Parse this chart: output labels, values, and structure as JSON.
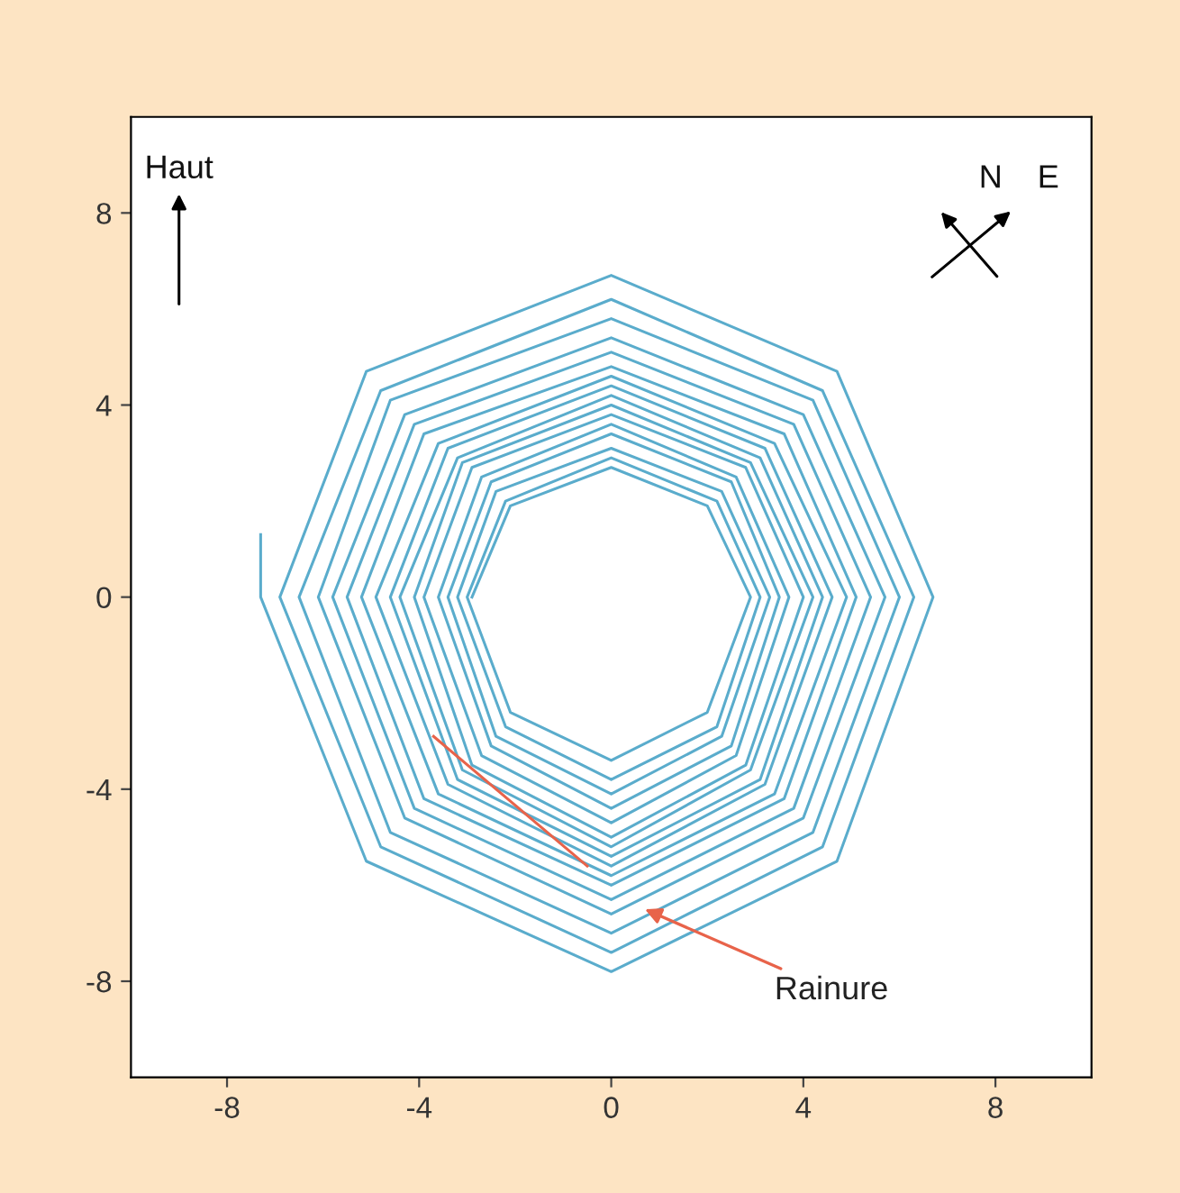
{
  "chart_data": {
    "type": "line",
    "xlim": [
      -10,
      10
    ],
    "ylim": [
      -10,
      10
    ],
    "xticks": [
      -8,
      -4,
      0,
      4,
      8
    ],
    "yticks": [
      -8,
      -4,
      0,
      4,
      8
    ],
    "marker": "none",
    "line_style": "solid",
    "series": [
      {
        "color": "#5aaccc",
        "x": [
          -7.3,
          -7.3,
          -5.1,
          0,
          4.7,
          6.7,
          4.7,
          0,
          -5.1,
          -6.9,
          -4.8,
          0,
          4.4,
          6.3,
          4.4,
          0,
          -4.8,
          -6.5,
          -4.6,
          0,
          4.2,
          6.0,
          4.2,
          0,
          -4.6,
          -6.1,
          -4.3,
          0,
          4.0,
          5.7,
          4.0,
          0,
          -4.3,
          -5.8,
          -4.1,
          0,
          3.8,
          5.4,
          3.8,
          0,
          -4.1,
          -5.5,
          -3.9,
          0,
          3.6,
          5.1,
          3.6,
          0,
          -3.9,
          -5.2,
          -3.6,
          0,
          3.4,
          4.9,
          3.4,
          0,
          -3.6,
          -4.9,
          -3.4,
          0,
          3.2,
          4.6,
          3.2,
          0,
          -3.4,
          -4.6,
          -3.2,
          0,
          3.1,
          4.4,
          3.1,
          0,
          -3.2,
          -4.4,
          -3.1,
          0,
          2.9,
          4.2,
          2.9,
          0,
          -3.1,
          -4.1,
          -2.9,
          0,
          2.8,
          4.0,
          2.8,
          0,
          -2.9,
          -3.9,
          -2.7,
          0,
          2.6,
          3.7,
          2.6,
          0,
          -2.7,
          -3.6,
          -2.5,
          0,
          2.5,
          3.5,
          2.5,
          0,
          -2.5,
          -3.4,
          -2.4,
          0,
          2.3,
          3.3,
          2.3,
          0,
          -2.4,
          -3.2,
          -2.2,
          0,
          2.2,
          3.1,
          2.2,
          0,
          -2.2,
          -3.0,
          -2.1,
          0,
          2.0,
          2.9,
          2.0,
          0,
          -2.1,
          -2.9
        ],
        "values": [
          1.3,
          0,
          -5.5,
          -7.8,
          -5.5,
          0,
          4.7,
          6.7,
          4.7,
          0,
          -5.2,
          -7.4,
          -5.2,
          0,
          4.3,
          6.2,
          4.3,
          0,
          -4.9,
          -7.0,
          -4.9,
          0,
          4.1,
          5.8,
          4.1,
          0,
          -4.6,
          -6.6,
          -4.6,
          0,
          3.8,
          5.4,
          3.8,
          0,
          -4.4,
          -6.3,
          -4.4,
          0,
          3.6,
          5.1,
          3.6,
          0,
          -4.2,
          -6.0,
          -4.2,
          0,
          3.4,
          4.8,
          3.4,
          0,
          -4.1,
          -5.8,
          -4.1,
          0,
          3.2,
          4.6,
          3.2,
          0,
          -3.9,
          -5.6,
          -3.9,
          0,
          3.1,
          4.4,
          3.1,
          0,
          -3.8,
          -5.4,
          -3.8,
          0,
          2.9,
          4.2,
          2.9,
          0,
          -3.6,
          -5.2,
          -3.6,
          0,
          2.8,
          4.0,
          2.8,
          0,
          -3.5,
          -5.0,
          -3.5,
          0,
          2.7,
          3.8,
          2.7,
          0,
          -3.3,
          -4.7,
          -3.3,
          0,
          2.5,
          3.6,
          2.5,
          0,
          -3.1,
          -4.4,
          -3.1,
          0,
          2.4,
          3.4,
          2.4,
          0,
          -2.9,
          -4.1,
          -2.9,
          0,
          2.2,
          3.1,
          2.2,
          0,
          -2.7,
          -3.8,
          -2.7,
          0,
          2.0,
          2.9,
          2.0,
          0,
          -2.4,
          -3.4,
          -2.4,
          0,
          1.9,
          2.7,
          1.9,
          0
        ]
      },
      {
        "color": "#e8634a",
        "x": [
          -3.7,
          -0.5
        ],
        "values": [
          -2.9,
          -5.6
        ]
      }
    ],
    "annotations": [
      {
        "text": "Rainure",
        "x": 0.7,
        "y": -6.5
      },
      "Haut",
      "N",
      "E"
    ]
  }
}
